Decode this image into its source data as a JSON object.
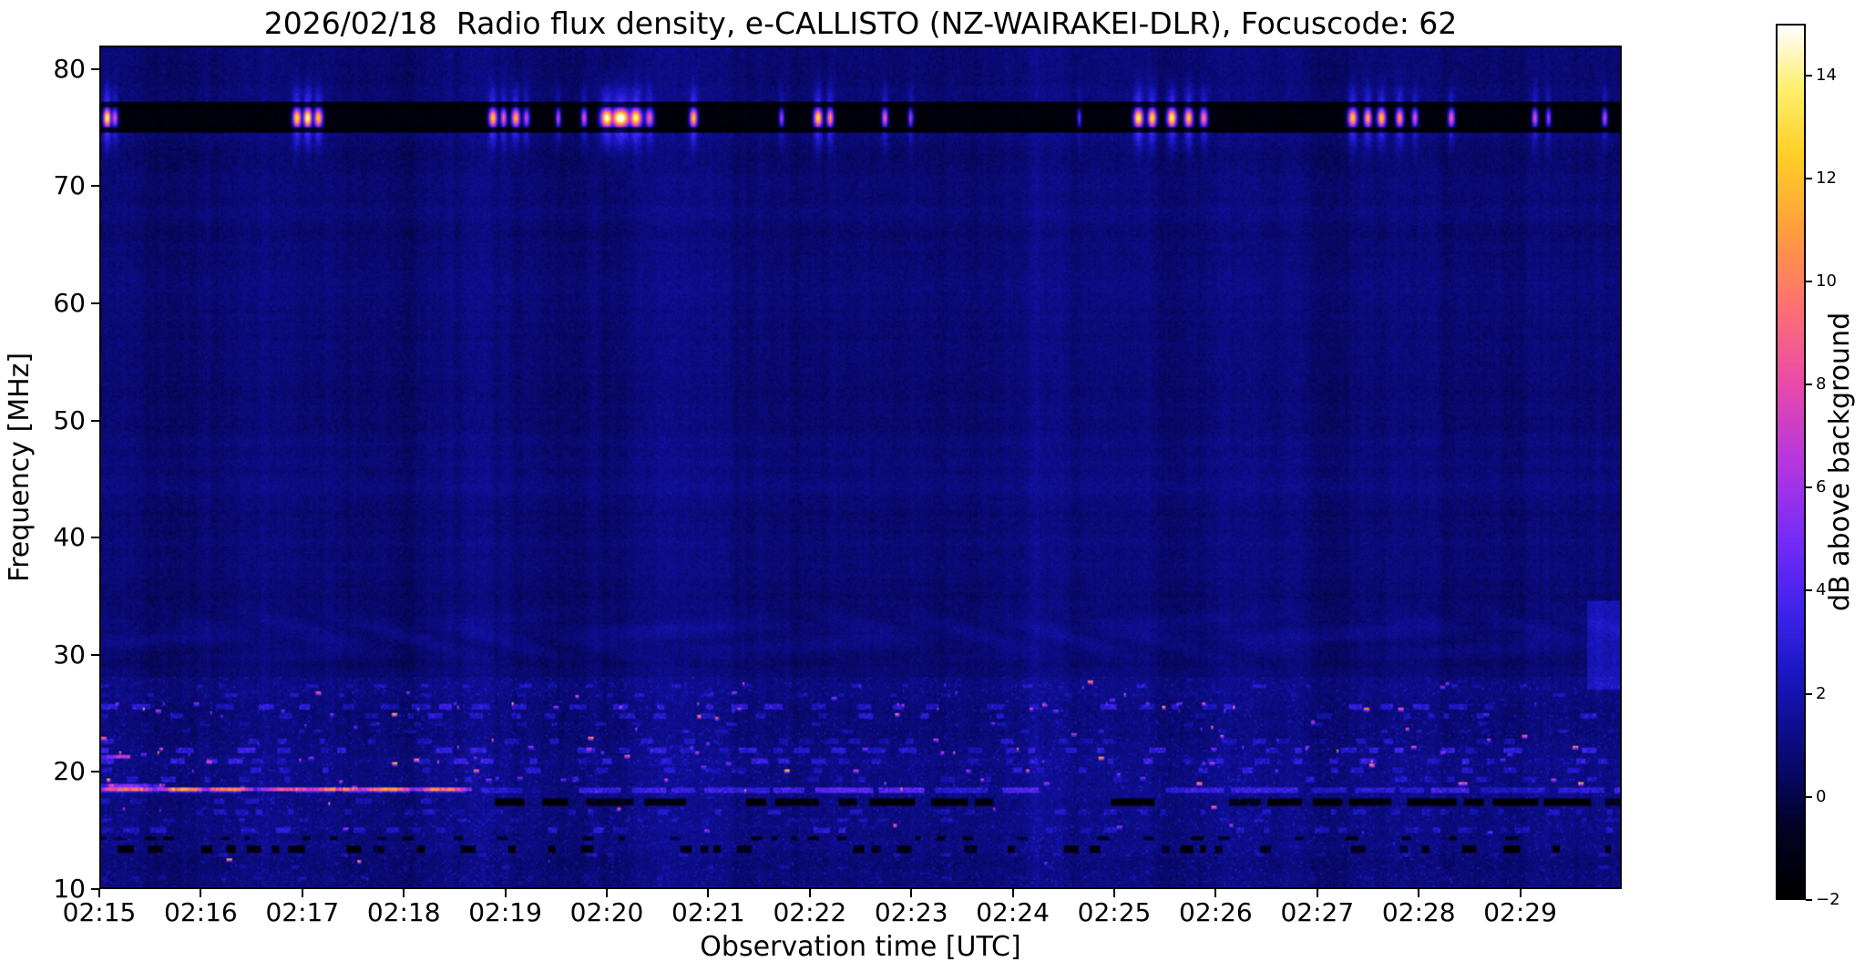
{
  "chart_data": {
    "type": "heatmap",
    "title": "2026/02/18  Radio flux density, e-CALLISTO (NZ-WAIRAKEI-DLR), Focuscode: 62",
    "xlabel": "Observation time [UTC]",
    "ylabel": "Frequency [MHz]",
    "x_ticks": [
      "02:15",
      "02:16",
      "02:17",
      "02:18",
      "02:19",
      "02:20",
      "02:21",
      "02:22",
      "02:23",
      "02:24",
      "02:25",
      "02:26",
      "02:27",
      "02:28",
      "02:29"
    ],
    "x_range": [
      "02:15:00",
      "02:30:00"
    ],
    "y_ticks": [
      10,
      20,
      30,
      40,
      50,
      60,
      70,
      80
    ],
    "y_range": [
      10,
      82
    ],
    "grid": false,
    "background_level_db": 0.7,
    "colorbar": {
      "label": "dB above background",
      "ticks": [
        -2,
        0,
        2,
        4,
        6,
        8,
        10,
        12,
        14
      ],
      "range": [
        -2,
        15
      ],
      "colormap_stops": [
        [
          -2,
          0,
          0,
          0
        ],
        [
          -0.6,
          3,
          3,
          38
        ],
        [
          0.4,
          8,
          8,
          100
        ],
        [
          1.4,
          15,
          15,
          148
        ],
        [
          2.4,
          28,
          24,
          196
        ],
        [
          3.5,
          60,
          34,
          234
        ],
        [
          5,
          118,
          44,
          248
        ],
        [
          6.5,
          183,
          54,
          224
        ],
        [
          8,
          233,
          74,
          170
        ],
        [
          9.5,
          255,
          112,
          115
        ],
        [
          11,
          255,
          158,
          62
        ],
        [
          12.5,
          255,
          208,
          38
        ],
        [
          13.8,
          255,
          240,
          110
        ],
        [
          15,
          255,
          255,
          255
        ]
      ]
    },
    "features": {
      "rfi_band": {
        "freq_center": 75.95,
        "black_low": 74.7,
        "black_high": 77.35,
        "bright_low": 75.15,
        "bright_high": 76.8,
        "bursts": [
          {
            "t": 0.004,
            "w": 0.0018,
            "i": 0.9
          },
          {
            "t": 0.009,
            "w": 0.0015,
            "i": 0.55
          },
          {
            "t": 0.129,
            "w": 0.002,
            "i": 0.85
          },
          {
            "t": 0.136,
            "w": 0.002,
            "i": 0.95
          },
          {
            "t": 0.143,
            "w": 0.002,
            "i": 0.8
          },
          {
            "t": 0.258,
            "w": 0.002,
            "i": 0.8
          },
          {
            "t": 0.265,
            "w": 0.0015,
            "i": 0.6
          },
          {
            "t": 0.273,
            "w": 0.002,
            "i": 0.75
          },
          {
            "t": 0.28,
            "w": 0.0015,
            "i": 0.5
          },
          {
            "t": 0.301,
            "w": 0.0012,
            "i": 0.5
          },
          {
            "t": 0.318,
            "w": 0.0014,
            "i": 0.55
          },
          {
            "t": 0.333,
            "w": 0.003,
            "i": 0.95
          },
          {
            "t": 0.342,
            "w": 0.0045,
            "i": 1.0
          },
          {
            "t": 0.352,
            "w": 0.003,
            "i": 0.9
          },
          {
            "t": 0.361,
            "w": 0.002,
            "i": 0.6
          },
          {
            "t": 0.39,
            "w": 0.0018,
            "i": 0.8
          },
          {
            "t": 0.448,
            "w": 0.0012,
            "i": 0.45
          },
          {
            "t": 0.472,
            "w": 0.002,
            "i": 0.85
          },
          {
            "t": 0.48,
            "w": 0.0016,
            "i": 0.7
          },
          {
            "t": 0.516,
            "w": 0.0014,
            "i": 0.6
          },
          {
            "t": 0.533,
            "w": 0.0012,
            "i": 0.45
          },
          {
            "t": 0.644,
            "w": 0.001,
            "i": 0.35
          },
          {
            "t": 0.683,
            "w": 0.0022,
            "i": 0.9
          },
          {
            "t": 0.692,
            "w": 0.002,
            "i": 0.85
          },
          {
            "t": 0.705,
            "w": 0.0022,
            "i": 0.9
          },
          {
            "t": 0.716,
            "w": 0.002,
            "i": 0.8
          },
          {
            "t": 0.726,
            "w": 0.0018,
            "i": 0.65
          },
          {
            "t": 0.824,
            "w": 0.0022,
            "i": 0.8
          },
          {
            "t": 0.834,
            "w": 0.0018,
            "i": 0.75
          },
          {
            "t": 0.843,
            "w": 0.002,
            "i": 0.8
          },
          {
            "t": 0.855,
            "w": 0.0018,
            "i": 0.7
          },
          {
            "t": 0.865,
            "w": 0.0015,
            "i": 0.55
          },
          {
            "t": 0.889,
            "w": 0.0016,
            "i": 0.6
          },
          {
            "t": 0.944,
            "w": 0.0014,
            "i": 0.55
          },
          {
            "t": 0.953,
            "w": 0.0012,
            "i": 0.45
          },
          {
            "t": 0.99,
            "w": 0.0013,
            "i": 0.5
          }
        ]
      },
      "wavy_band": {
        "freq_center": 31.5,
        "freq_sigma": 2.2,
        "amp": 0.55
      },
      "right_edge_blob": {
        "t0": 0.978,
        "f0": 27,
        "f1": 34.5,
        "amp": 1.4
      },
      "low_freq_noise": {
        "max_freq": 28,
        "speckle_amp": 1.4,
        "rows": [
          {
            "f": 27.4,
            "h": 0.35,
            "amp": 1.2,
            "dash": 5,
            "gap": 16,
            "prob": 0.45
          },
          {
            "f": 26.6,
            "h": 0.35,
            "amp": 1.1,
            "dash": 5,
            "gap": 18,
            "prob": 0.4
          },
          {
            "f": 25.7,
            "h": 0.45,
            "amp": 1.6,
            "dash": 7,
            "gap": 10,
            "prob": 0.6
          },
          {
            "f": 25.0,
            "h": 0.4,
            "amp": 1.4,
            "dash": 6,
            "gap": 12,
            "prob": 0.55
          },
          {
            "f": 24.2,
            "h": 0.35,
            "amp": 1.0,
            "dash": 5,
            "gap": 15,
            "prob": 0.45
          },
          {
            "f": 23.5,
            "h": 0.35,
            "amp": 1.1,
            "dash": 5,
            "gap": 13,
            "prob": 0.5
          },
          {
            "f": 22.7,
            "h": 0.4,
            "amp": 1.2,
            "dash": 6,
            "gap": 12,
            "prob": 0.5
          },
          {
            "f": 21.9,
            "h": 0.45,
            "amp": 1.7,
            "dash": 7,
            "gap": 10,
            "prob": 0.6
          },
          {
            "f": 21.1,
            "h": 0.45,
            "amp": 1.5,
            "dash": 6,
            "gap": 11,
            "prob": 0.55
          },
          {
            "f": 20.3,
            "h": 0.4,
            "amp": 1.3,
            "dash": 6,
            "gap": 12,
            "prob": 0.5
          },
          {
            "f": 19.5,
            "h": 0.4,
            "amp": 1.4,
            "dash": 6,
            "gap": 12,
            "prob": 0.5
          },
          {
            "f": 18.55,
            "h": 0.5,
            "amp": 2.2,
            "dash": 26,
            "gap": 5,
            "prob": 0.85
          },
          {
            "f": 17.65,
            "h": 0.55,
            "amp": -2.8,
            "dash": 18,
            "gap": 7,
            "prob": 0.8,
            "t0": 0.26
          },
          {
            "f": 17.65,
            "h": 0.4,
            "amp": 1.0,
            "dash": 6,
            "gap": 12,
            "prob": 0.5,
            "t1": 0.26
          },
          {
            "f": 16.7,
            "h": 0.45,
            "amp": 1.2,
            "dash": 5,
            "gap": 9,
            "prob": 0.5
          },
          {
            "f": 15.9,
            "h": 0.35,
            "amp": 1.0,
            "dash": 5,
            "gap": 10,
            "prob": 0.5
          },
          {
            "f": 15.1,
            "h": 0.45,
            "amp": 1.3,
            "dash": 6,
            "gap": 9,
            "prob": 0.55
          },
          {
            "f": 14.3,
            "h": 0.35,
            "amp": -2.2,
            "dash": 5,
            "gap": 8,
            "prob": 0.55
          },
          {
            "f": 13.5,
            "h": 0.55,
            "amp": -2.6,
            "dash": 6,
            "gap": 6,
            "prob": 0.65
          },
          {
            "f": 12.9,
            "h": 0.35,
            "amp": 1.0,
            "dash": 4,
            "gap": 11,
            "prob": 0.45
          },
          {
            "f": 11.9,
            "h": 0.35,
            "amp": 0.9,
            "dash": 4,
            "gap": 13,
            "prob": 0.4
          },
          {
            "f": 10.9,
            "h": 0.35,
            "amp": 0.8,
            "dash": 4,
            "gap": 13,
            "prob": 0.4
          }
        ],
        "hot_segments": [
          {
            "f": 18.6,
            "t0": 0.0,
            "t1": 0.245,
            "amp": 7.0
          },
          {
            "f": 18.9,
            "t0": 0.0,
            "t1": 0.04,
            "amp": 4.5
          },
          {
            "f": 21.3,
            "t0": 0.0,
            "t1": 0.02,
            "amp": 5.5
          }
        ],
        "dot_rows": [
          {
            "f": 27.5,
            "n": 6
          },
          {
            "f": 26.5,
            "n": 8
          },
          {
            "f": 25.6,
            "n": 26
          },
          {
            "f": 25.0,
            "n": 16
          },
          {
            "f": 24.0,
            "n": 8
          },
          {
            "f": 22.8,
            "n": 10
          },
          {
            "f": 21.8,
            "n": 24
          },
          {
            "f": 21.0,
            "n": 16
          },
          {
            "f": 20.2,
            "n": 10
          },
          {
            "f": 19.3,
            "n": 16
          },
          {
            "f": 18.7,
            "n": 8
          },
          {
            "f": 17.0,
            "n": 6
          },
          {
            "f": 15.2,
            "n": 7
          },
          {
            "f": 12.5,
            "n": 4
          }
        ],
        "dot_amp_range": [
          3.5,
          10.5
        ]
      }
    }
  }
}
